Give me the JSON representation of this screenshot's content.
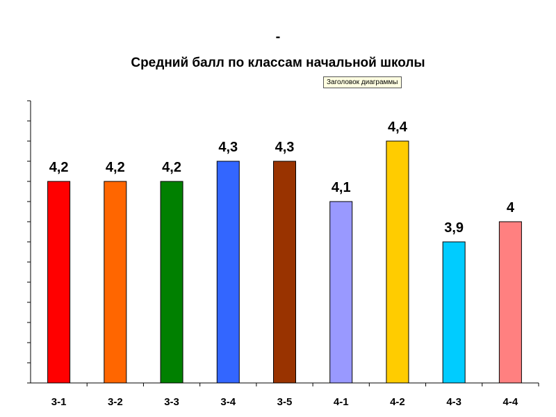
{
  "header": {
    "dash": "-",
    "title": "Средний балл по классам начальной школы",
    "tooltip": "Заголовок диаграммы"
  },
  "chart_data": {
    "type": "bar",
    "title": "Средний балл по классам начальной школы",
    "categories": [
      "3-1",
      "3-2",
      "3-3",
      "3-4",
      "3-5",
      "4-1",
      "4-2",
      "4-3",
      "4-4"
    ],
    "values": [
      4.2,
      4.2,
      4.2,
      4.3,
      4.3,
      4.1,
      4.4,
      3.9,
      4.0
    ],
    "data_labels": [
      "4,2",
      "4,2",
      "4,2",
      "4,3",
      "4,3",
      "4,1",
      "4,4",
      "3,9",
      "4"
    ],
    "colors": [
      "#ff0000",
      "#ff6600",
      "#008000",
      "#3366ff",
      "#993300",
      "#9999ff",
      "#ffcc00",
      "#00ccff",
      "#ff8080"
    ],
    "ylim": [
      3.2,
      4.6
    ],
    "ytick_step": 0.1,
    "ytick_labels_visible": false,
    "grid": false,
    "legend": "none",
    "xlabel": "",
    "ylabel": ""
  }
}
